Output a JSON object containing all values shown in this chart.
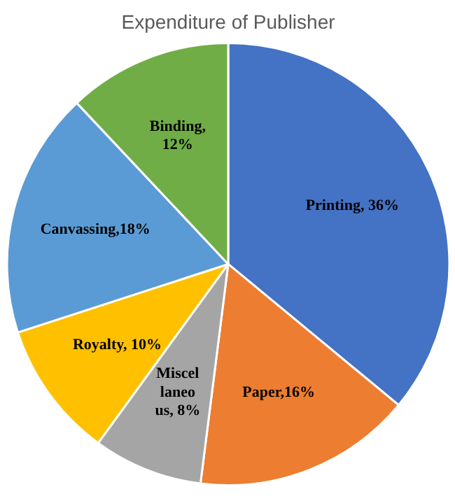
{
  "chart_data": {
    "type": "pie",
    "title": "Expenditure of Publisher",
    "categories": [
      "Printing",
      "Paper",
      "Miscel\nlaneo\nus",
      "Royalty",
      "Canvassing",
      "Binding"
    ],
    "values": [
      36,
      16,
      8,
      10,
      18,
      12
    ],
    "colors": [
      "#4472c4",
      "#ed7d31",
      "#a5a5a5",
      "#ffc000",
      "#5b9bd5",
      "#70ad47"
    ],
    "value_labels": [
      ", 36%",
      ",16%",
      ", 8%",
      ", 10%",
      ",18%",
      ",\n12%"
    ],
    "legend": false
  }
}
